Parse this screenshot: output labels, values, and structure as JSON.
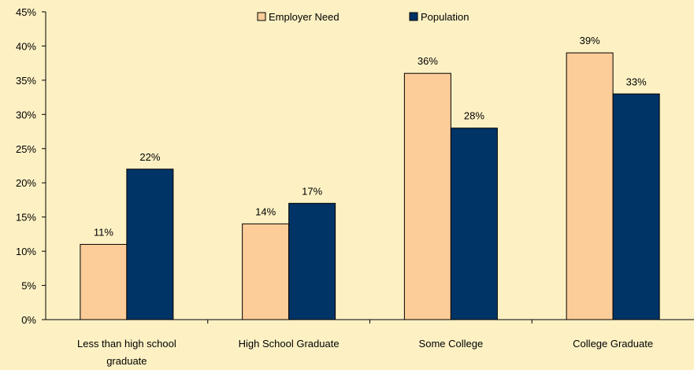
{
  "chart_data": {
    "type": "bar",
    "title": "",
    "xlabel": "",
    "ylabel": "",
    "categories": [
      [
        "Less than high school",
        "graduate"
      ],
      [
        "High School Graduate"
      ],
      [
        "Some College"
      ],
      [
        "College Graduate"
      ]
    ],
    "series": [
      {
        "name": "Employer Need",
        "values": [
          11,
          14,
          36,
          39
        ],
        "labels": [
          "11%",
          "14%",
          "36%",
          "39%"
        ],
        "color": "#fccc99"
      },
      {
        "name": "Population",
        "values": [
          22,
          17,
          28,
          33
        ],
        "labels": [
          "22%",
          "17%",
          "28%",
          "33%"
        ],
        "color": "#003366"
      }
    ],
    "ylim": [
      0,
      45
    ],
    "yticks": [
      0,
      5,
      10,
      15,
      20,
      25,
      30,
      35,
      40,
      45
    ],
    "ytick_labels": [
      "0%",
      "5%",
      "10%",
      "15%",
      "20%",
      "25%",
      "30%",
      "35%",
      "40%",
      "45%"
    ],
    "grid": false,
    "legend": "top-center",
    "colors": {
      "background": "#fdf1c4",
      "axis": "#000000"
    }
  }
}
